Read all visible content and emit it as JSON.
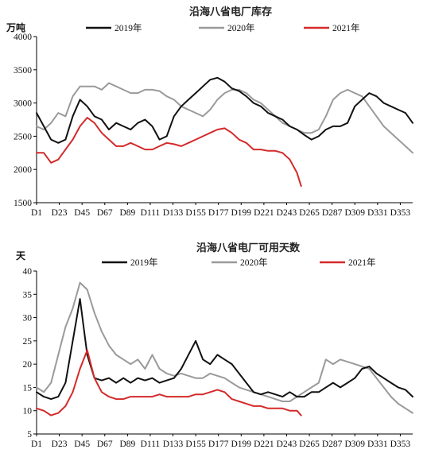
{
  "colors": {
    "s2019": "#111111",
    "s2020": "#9a9a9a",
    "s2021": "#d42a2a",
    "axis": "#000000"
  },
  "chart_data": [
    {
      "type": "line",
      "title": "沿海八省电厂库存",
      "ylabel": "万吨",
      "xlabel": "",
      "x_tick_labels": [
        "D1",
        "D23",
        "D45",
        "D67",
        "D89",
        "D111",
        "D133",
        "D155",
        "D177",
        "D199",
        "D221",
        "D243",
        "D265",
        "D287",
        "D309",
        "D331",
        "D353"
      ],
      "ylim": [
        1500,
        4000
      ],
      "y_ticks": [
        1500,
        2000,
        2500,
        3000,
        3500,
        4000
      ],
      "grid": false,
      "legend": "top",
      "series": [
        {
          "name": "2019年",
          "x": [
            1,
            8,
            15,
            22,
            29,
            36,
            43,
            50,
            57,
            64,
            71,
            78,
            85,
            92,
            99,
            106,
            113,
            120,
            127,
            134,
            141,
            148,
            155,
            162,
            169,
            176,
            183,
            190,
            197,
            204,
            211,
            218,
            225,
            232,
            239,
            246,
            253,
            260,
            267,
            274,
            281,
            288,
            295,
            302,
            309,
            316,
            323,
            330,
            337,
            344,
            351,
            358,
            365
          ],
          "values": [
            2850,
            2650,
            2450,
            2400,
            2450,
            2800,
            3050,
            2950,
            2800,
            2750,
            2600,
            2700,
            2650,
            2600,
            2700,
            2750,
            2650,
            2450,
            2500,
            2800,
            2950,
            3050,
            3150,
            3250,
            3350,
            3380,
            3320,
            3220,
            3180,
            3100,
            3000,
            2950,
            2850,
            2800,
            2750,
            2650,
            2600,
            2520,
            2450,
            2500,
            2600,
            2650,
            2650,
            2700,
            2950,
            3050,
            3150,
            3100,
            3000,
            2950,
            2900,
            2850,
            2700
          ]
        },
        {
          "name": "2020年",
          "x": [
            1,
            8,
            15,
            22,
            29,
            36,
            43,
            50,
            57,
            64,
            71,
            78,
            85,
            92,
            99,
            106,
            113,
            120,
            127,
            134,
            141,
            148,
            155,
            162,
            169,
            176,
            183,
            190,
            197,
            204,
            211,
            218,
            225,
            232,
            239,
            246,
            253,
            260,
            267,
            274,
            281,
            288,
            295,
            302,
            309,
            316,
            323,
            330,
            337,
            344,
            351,
            358,
            365
          ],
          "values": [
            2650,
            2600,
            2700,
            2850,
            2800,
            3100,
            3250,
            3250,
            3250,
            3200,
            3300,
            3250,
            3200,
            3150,
            3150,
            3200,
            3200,
            3180,
            3100,
            3050,
            2950,
            2900,
            2850,
            2800,
            2900,
            3050,
            3150,
            3200,
            3200,
            3150,
            3050,
            3000,
            2900,
            2800,
            2700,
            2650,
            2600,
            2550,
            2550,
            2600,
            2800,
            3050,
            3150,
            3200,
            3150,
            3100,
            2950,
            2800,
            2650,
            2550,
            2450,
            2350,
            2250
          ]
        },
        {
          "name": "2021年",
          "x": [
            1,
            8,
            15,
            22,
            29,
            36,
            43,
            50,
            57,
            64,
            71,
            78,
            85,
            92,
            99,
            106,
            113,
            120,
            127,
            134,
            141,
            148,
            155,
            162,
            169,
            176,
            183,
            190,
            197,
            204,
            211,
            218,
            225,
            232,
            239,
            246,
            253,
            257
          ],
          "values": [
            2250,
            2250,
            2100,
            2150,
            2300,
            2450,
            2650,
            2780,
            2700,
            2550,
            2450,
            2350,
            2350,
            2400,
            2350,
            2300,
            2300,
            2350,
            2400,
            2380,
            2350,
            2400,
            2450,
            2500,
            2550,
            2600,
            2620,
            2550,
            2450,
            2400,
            2300,
            2300,
            2280,
            2280,
            2250,
            2150,
            1950,
            1750
          ]
        }
      ]
    },
    {
      "type": "line",
      "title": "沿海八省电厂可用天数",
      "ylabel": "天",
      "xlabel": "",
      "x_tick_labels": [
        "D1",
        "D23",
        "D45",
        "D67",
        "D89",
        "D111",
        "D133",
        "D155",
        "D177",
        "D199",
        "D221",
        "D243",
        "D265",
        "D287",
        "D309",
        "D331",
        "D353"
      ],
      "ylim": [
        5,
        40
      ],
      "y_ticks": [
        5,
        10,
        15,
        20,
        25,
        30,
        35,
        40
      ],
      "grid": false,
      "legend": "top",
      "series": [
        {
          "name": "2019年",
          "x": [
            1,
            8,
            15,
            22,
            29,
            36,
            43,
            50,
            57,
            64,
            71,
            78,
            85,
            92,
            99,
            106,
            113,
            120,
            127,
            134,
            141,
            148,
            155,
            162,
            169,
            176,
            183,
            190,
            197,
            204,
            211,
            218,
            225,
            232,
            239,
            246,
            253,
            260,
            267,
            274,
            281,
            288,
            295,
            302,
            309,
            316,
            323,
            330,
            337,
            344,
            351,
            358,
            365
          ],
          "values": [
            14,
            13,
            12.5,
            13,
            16,
            25,
            34,
            22,
            17,
            16.5,
            17,
            16,
            17,
            16,
            17,
            16.5,
            17,
            16,
            16.5,
            17,
            19,
            22,
            25,
            21,
            20,
            22,
            21,
            20,
            18,
            16,
            14,
            13.5,
            14,
            13.5,
            13,
            14,
            13,
            13,
            14,
            14,
            15,
            16,
            15,
            16,
            17,
            19,
            19.5,
            18,
            17,
            16,
            15,
            14.5,
            13
          ]
        },
        {
          "name": "2020年",
          "x": [
            1,
            8,
            15,
            22,
            29,
            36,
            43,
            50,
            57,
            64,
            71,
            78,
            85,
            92,
            99,
            106,
            113,
            120,
            127,
            134,
            141,
            148,
            155,
            162,
            169,
            176,
            183,
            190,
            197,
            204,
            211,
            218,
            225,
            232,
            239,
            246,
            253,
            260,
            267,
            274,
            281,
            288,
            295,
            302,
            309,
            316,
            323,
            330,
            337,
            344,
            351,
            358,
            365
          ],
          "values": [
            15,
            14,
            16,
            22,
            28,
            32,
            37.5,
            36,
            31,
            27,
            24,
            22,
            21,
            20,
            21,
            19,
            22,
            19,
            18,
            17.5,
            18,
            17.5,
            17,
            17,
            18,
            17.5,
            17,
            16,
            15,
            14.5,
            14,
            13.5,
            13,
            12.5,
            12,
            12,
            13,
            14,
            15,
            16,
            21,
            20,
            21,
            20.5,
            20,
            19.5,
            19,
            17,
            15,
            13,
            11.5,
            10.5,
            9.5
          ]
        },
        {
          "name": "2021年",
          "x": [
            1,
            8,
            15,
            22,
            29,
            36,
            43,
            50,
            57,
            64,
            71,
            78,
            85,
            92,
            99,
            106,
            113,
            120,
            127,
            134,
            141,
            148,
            155,
            162,
            169,
            176,
            183,
            190,
            197,
            204,
            211,
            218,
            225,
            232,
            239,
            246,
            253,
            257
          ],
          "values": [
            10.5,
            10,
            9,
            9.5,
            11,
            14,
            19,
            23,
            17,
            14,
            13,
            12.5,
            12.5,
            13,
            13,
            13,
            13,
            13.5,
            13,
            13,
            13,
            13,
            13.5,
            13.5,
            14,
            14.5,
            14,
            12.5,
            12,
            11.5,
            11,
            11,
            10.5,
            10.5,
            10.5,
            10,
            10,
            9
          ]
        }
      ]
    }
  ]
}
